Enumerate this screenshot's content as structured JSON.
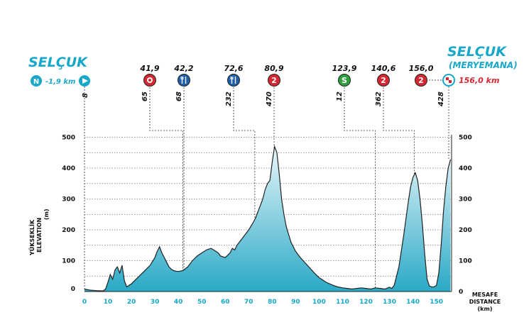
{
  "start": {
    "city": "SELÇUK",
    "neutral_icon_label": "N",
    "neutral_km": "-1,9 km",
    "start_altitude": "8"
  },
  "finish": {
    "city": "SELÇUK",
    "sub": "(MERYEMANA)",
    "km": "156,0 km",
    "finish_altitude": "428"
  },
  "markers": [
    {
      "km": 41.9,
      "label": "41,9",
      "type": "sprint",
      "altitude": "65",
      "color": "#d62631"
    },
    {
      "km": 42.2,
      "label": "42,2",
      "type": "feed",
      "altitude": "68",
      "color": "#1f5fa8"
    },
    {
      "km": 72.6,
      "label": "72,6",
      "type": "feed",
      "altitude": "232",
      "color": "#1f5fa8"
    },
    {
      "km": 80.9,
      "label": "80,9",
      "type": "climb",
      "icon_text": "2",
      "altitude": "470",
      "color": "#d62631"
    },
    {
      "km": 123.9,
      "label": "123,9",
      "type": "sprint-s",
      "icon_text": "S",
      "altitude": "12",
      "color": "#2e9e3e"
    },
    {
      "km": 140.6,
      "label": "140,6",
      "type": "climb",
      "icon_text": "2",
      "altitude": "362",
      "color": "#d62631"
    },
    {
      "km": 156.0,
      "label": "156,0",
      "type": "climb",
      "icon_text": "2",
      "altitude": "",
      "color": "#d62631"
    }
  ],
  "axis": {
    "y_left_label_1": "YÜKSEKLİK",
    "y_left_label_2": "ELEVATION",
    "y_left_unit": "(m)",
    "x_label_1": "MESAFE",
    "x_label_2": "DISTANCE",
    "x_unit": "(km)"
  },
  "colors": {
    "accent": "#17a7c8",
    "fill_top": "#e8f6fa",
    "fill_bottom": "#2aa9c6",
    "line": "#222222"
  },
  "chart_data": {
    "type": "area",
    "xlabel": "MESAFE DISTANCE (km)",
    "ylabel": "YÜKSEKLİK ELEVATION (m)",
    "xlim": [
      0,
      156
    ],
    "ylim": [
      0,
      500
    ],
    "x_ticks": [
      0,
      10,
      20,
      30,
      40,
      50,
      60,
      70,
      80,
      90,
      100,
      110,
      120,
      130,
      140,
      150
    ],
    "y_ticks": [
      0,
      100,
      200,
      300,
      400,
      500
    ],
    "grid": true,
    "x": [
      0,
      2,
      5,
      8,
      9,
      10,
      11,
      12,
      13,
      14,
      15,
      16,
      17,
      18,
      19,
      20,
      22,
      24,
      26,
      28,
      30,
      31,
      32,
      33,
      34,
      35,
      36,
      37,
      38,
      39,
      40,
      42,
      44,
      46,
      48,
      50,
      52,
      54,
      56,
      57,
      58,
      60,
      62,
      63,
      64,
      65,
      66,
      68,
      70,
      72,
      73,
      74,
      75,
      76,
      77,
      78,
      79,
      80,
      81,
      82,
      83,
      84,
      85,
      86,
      88,
      90,
      92,
      95,
      98,
      100,
      103,
      106,
      108,
      110,
      112,
      114,
      116,
      118,
      120,
      122,
      124,
      126,
      128,
      130,
      131,
      132,
      134,
      136,
      138,
      139,
      140,
      141,
      142,
      143,
      144,
      145,
      146,
      147,
      148,
      149,
      150,
      151,
      152,
      153,
      154,
      155,
      156
    ],
    "y": [
      8,
      5,
      3,
      2,
      8,
      30,
      55,
      40,
      70,
      80,
      60,
      85,
      35,
      15,
      20,
      25,
      40,
      55,
      70,
      85,
      110,
      130,
      145,
      125,
      110,
      95,
      80,
      72,
      68,
      66,
      65,
      68,
      80,
      100,
      115,
      125,
      135,
      140,
      130,
      125,
      115,
      110,
      125,
      140,
      135,
      150,
      160,
      180,
      200,
      225,
      240,
      260,
      280,
      300,
      330,
      350,
      360,
      420,
      470,
      450,
      380,
      300,
      250,
      210,
      160,
      130,
      110,
      85,
      60,
      45,
      30,
      20,
      15,
      12,
      10,
      8,
      10,
      12,
      10,
      8,
      12,
      10,
      8,
      14,
      10,
      20,
      80,
      180,
      290,
      340,
      370,
      385,
      360,
      300,
      220,
      120,
      40,
      18,
      15,
      15,
      20,
      60,
      150,
      260,
      340,
      400,
      428
    ]
  }
}
